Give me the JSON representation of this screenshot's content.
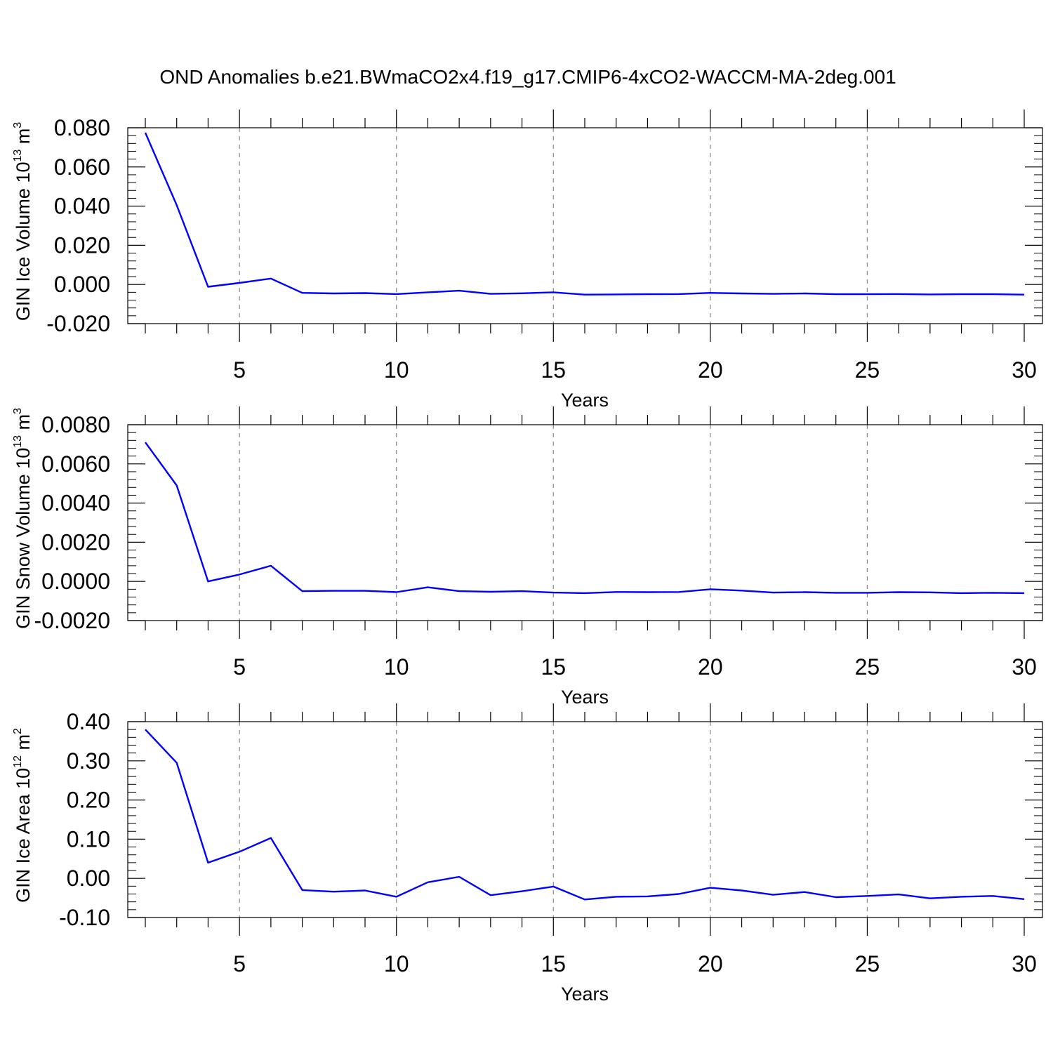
{
  "title": "OND Anomalies b.e21.BWmaCO2x4.f19_g17.CMIP6-4xCO2-WACCM-MA-2deg.001",
  "colors": {
    "line": "#0000ff",
    "axis": "#000000",
    "grid": "#888888",
    "background": "#ffffff"
  },
  "chart_data": [
    {
      "type": "line",
      "xlabel": "Years",
      "ylabel": {
        "main": "GIN Ice Volume 10",
        "exp": "13",
        "unit": " m",
        "unit_exp": "3"
      },
      "xlim": [
        2,
        30
      ],
      "ylim": [
        -0.02,
        0.08
      ],
      "xticks": [
        5,
        10,
        15,
        20,
        25,
        30
      ],
      "yticks": [
        -0.02,
        0.0,
        0.02,
        0.04,
        0.06,
        0.08
      ],
      "ytick_labels": [
        "-0.020",
        "0.000",
        "0.020",
        "0.040",
        "0.060",
        "0.080"
      ],
      "x_grid": "dashed vertical lines at major x ticks",
      "x": [
        2,
        3,
        4,
        5,
        6,
        7,
        8,
        9,
        10,
        11,
        12,
        13,
        14,
        15,
        16,
        17,
        18,
        19,
        20,
        21,
        22,
        23,
        24,
        25,
        26,
        27,
        28,
        29,
        30
      ],
      "series": [
        {
          "values": [
            0.0775,
            0.0405,
            -0.0012,
            0.0008,
            0.003,
            -0.0043,
            -0.0046,
            -0.0044,
            -0.0049,
            -0.004,
            -0.0032,
            -0.0048,
            -0.0045,
            -0.004,
            -0.0052,
            -0.0051,
            -0.005,
            -0.0049,
            -0.0043,
            -0.0046,
            -0.0048,
            -0.0046,
            -0.005,
            -0.005,
            -0.0049,
            -0.0051,
            -0.005,
            -0.005,
            -0.0052
          ]
        }
      ]
    },
    {
      "type": "line",
      "xlabel": "Years",
      "ylabel": {
        "main": "GIN Snow Volume 10",
        "exp": "13",
        "unit": " m",
        "unit_exp": "3"
      },
      "xlim": [
        2,
        30
      ],
      "ylim": [
        -0.002,
        0.008
      ],
      "xticks": [
        5,
        10,
        15,
        20,
        25,
        30
      ],
      "yticks": [
        -0.002,
        0.0,
        0.002,
        0.004,
        0.006,
        0.008
      ],
      "ytick_labels": [
        "-0.0020",
        "0.0000",
        "0.0020",
        "0.0040",
        "0.0060",
        "0.0080"
      ],
      "x_grid": "dashed vertical lines at major x ticks",
      "x": [
        2,
        3,
        4,
        5,
        6,
        7,
        8,
        9,
        10,
        11,
        12,
        13,
        14,
        15,
        16,
        17,
        18,
        19,
        20,
        21,
        22,
        23,
        24,
        25,
        26,
        27,
        28,
        29,
        30
      ],
      "series": [
        {
          "values": [
            0.0071,
            0.0049,
            0.0,
            0.00035,
            0.0008,
            -0.0005,
            -0.00048,
            -0.00048,
            -0.00055,
            -0.0003,
            -0.0005,
            -0.00053,
            -0.0005,
            -0.00057,
            -0.0006,
            -0.00054,
            -0.00055,
            -0.00054,
            -0.0004,
            -0.00047,
            -0.00057,
            -0.00055,
            -0.00058,
            -0.00058,
            -0.00055,
            -0.00056,
            -0.0006,
            -0.00058,
            -0.0006
          ]
        }
      ]
    },
    {
      "type": "line",
      "xlabel": "Years",
      "ylabel": {
        "main": "GIN Ice Area 10",
        "exp": "12",
        "unit": " m",
        "unit_exp": "2"
      },
      "xlim": [
        2,
        30
      ],
      "ylim": [
        -0.1,
        0.4
      ],
      "xticks": [
        5,
        10,
        15,
        20,
        25,
        30
      ],
      "yticks": [
        -0.1,
        0.0,
        0.1,
        0.2,
        0.3,
        0.4
      ],
      "ytick_labels": [
        "-0.10",
        "0.00",
        "0.10",
        "0.20",
        "0.30",
        "0.40"
      ],
      "x_grid": "dashed vertical lines at major x ticks",
      "x": [
        2,
        3,
        4,
        5,
        6,
        7,
        8,
        9,
        10,
        11,
        12,
        13,
        14,
        15,
        16,
        17,
        18,
        19,
        20,
        21,
        22,
        23,
        24,
        25,
        26,
        27,
        28,
        29,
        30
      ],
      "series": [
        {
          "values": [
            0.38,
            0.295,
            0.04,
            0.068,
            0.103,
            -0.03,
            -0.034,
            -0.031,
            -0.047,
            -0.01,
            0.004,
            -0.043,
            -0.033,
            -0.021,
            -0.054,
            -0.047,
            -0.046,
            -0.04,
            -0.024,
            -0.031,
            -0.042,
            -0.035,
            -0.048,
            -0.045,
            -0.041,
            -0.051,
            -0.047,
            -0.045,
            -0.053
          ]
        }
      ]
    }
  ]
}
